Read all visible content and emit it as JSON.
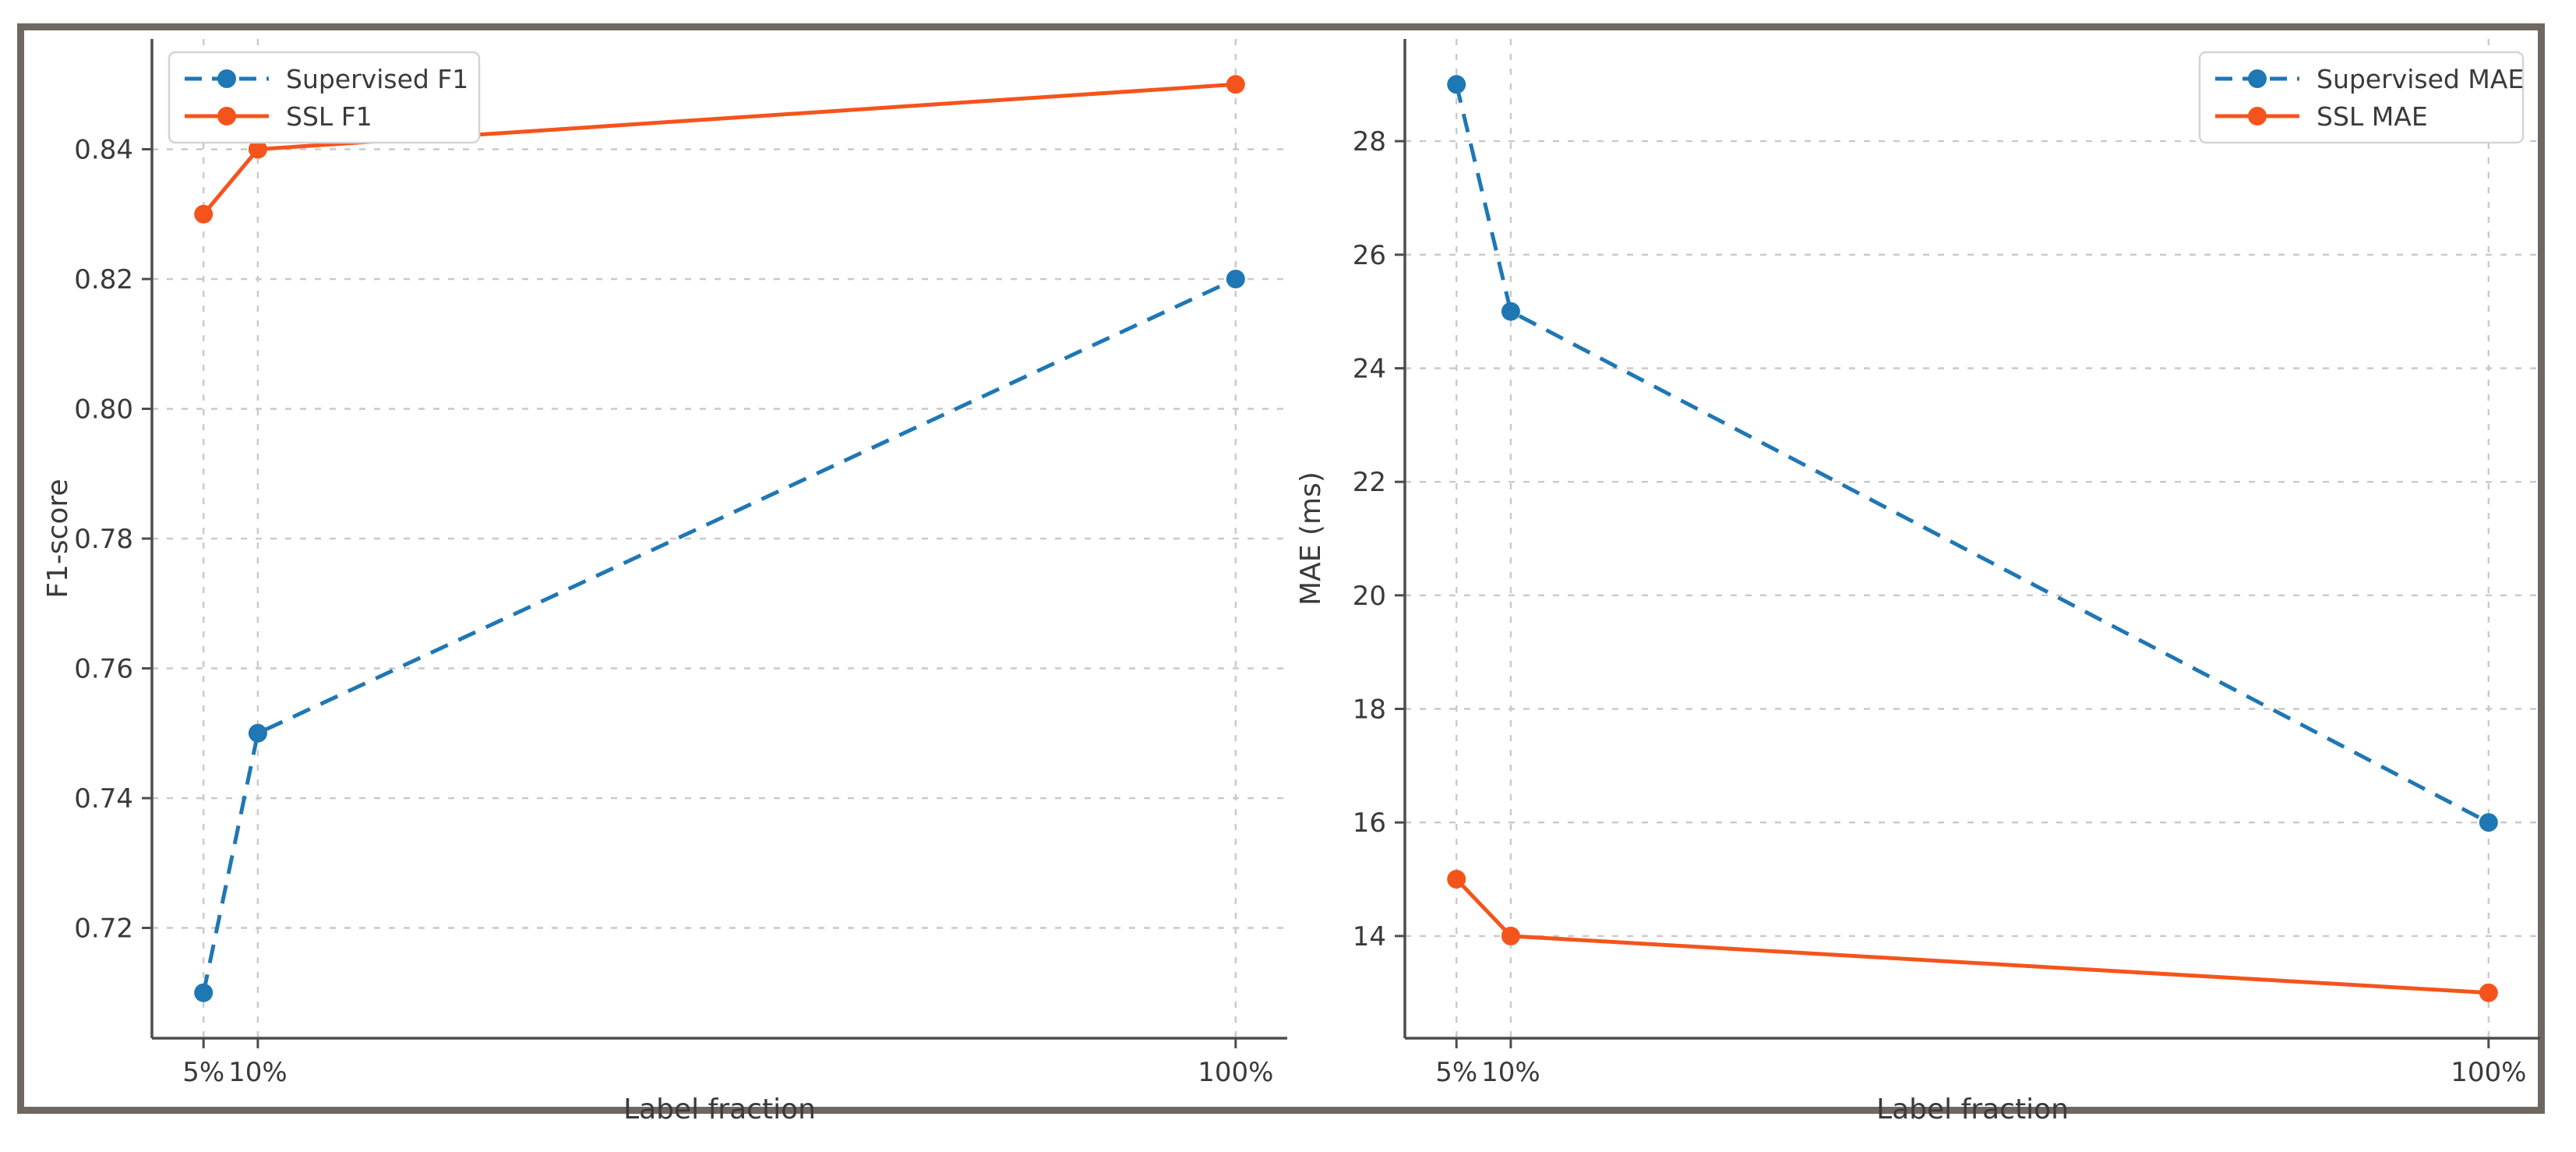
{
  "figure": {
    "background": "#ffffff",
    "frame_border_color": "#6f6862",
    "grid_color": "#c9c9c9",
    "spine_color": "#4d4d4d",
    "text_color": "#3a3a3a",
    "accent_blue": "#1f77b4",
    "accent_orange": "#f4541c"
  },
  "chart_data": [
    {
      "type": "line",
      "name": "f1-vs-label-fraction",
      "title": "",
      "xlabel": "Label fraction",
      "ylabel": "F1-score",
      "x": [
        5,
        10,
        100
      ],
      "xtick_labels": [
        "5%",
        "10%",
        "100%"
      ],
      "yticks": [
        0.72,
        0.74,
        0.76,
        0.78,
        0.8,
        0.82,
        0.84
      ],
      "ytick_labels": [
        "0.72",
        "0.74",
        "0.76",
        "0.78",
        "0.80",
        "0.82",
        "0.84"
      ],
      "ylim": [
        0.703,
        0.857
      ],
      "grid": true,
      "legend_position": "upper-left",
      "series": [
        {
          "name": "Supervised F1",
          "values": [
            0.71,
            0.75,
            0.82
          ],
          "color": "#1f77b4",
          "style": "dashed",
          "marker": "circle"
        },
        {
          "name": "SSL F1",
          "values": [
            0.83,
            0.84,
            0.85
          ],
          "color": "#f4541c",
          "style": "solid",
          "marker": "circle"
        }
      ]
    },
    {
      "type": "line",
      "name": "mae-vs-label-fraction",
      "title": "",
      "xlabel": "Label fraction",
      "ylabel": "MAE (ms)",
      "x": [
        5,
        10,
        100
      ],
      "xtick_labels": [
        "5%",
        "10%",
        "100%"
      ],
      "yticks": [
        14,
        16,
        18,
        20,
        22,
        24,
        26,
        28
      ],
      "ytick_labels": [
        "14",
        "16",
        "18",
        "20",
        "22",
        "24",
        "26",
        "28"
      ],
      "ylim": [
        12.2,
        29.8
      ],
      "grid": true,
      "legend_position": "upper-right",
      "series": [
        {
          "name": "Supervised MAE",
          "values": [
            29,
            25,
            16
          ],
          "color": "#1f77b4",
          "style": "dashed",
          "marker": "circle"
        },
        {
          "name": "SSL MAE",
          "values": [
            15,
            14,
            13
          ],
          "color": "#f4541c",
          "style": "solid",
          "marker": "circle"
        }
      ]
    }
  ]
}
